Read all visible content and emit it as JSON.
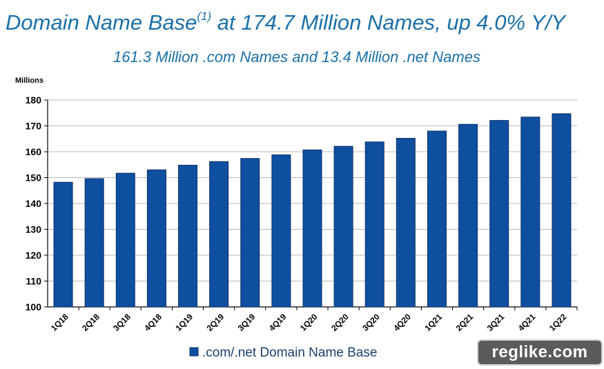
{
  "header": {
    "title_main": "Domain Name Base",
    "title_sup": "(1)",
    "title_rest": " at 174.7 Million Names, up 4.0% Y/Y",
    "subtitle": "161.3 Million .com Names and 13.4 Million .net Names"
  },
  "watermark": {
    "text": "reglike.com"
  },
  "colors": {
    "bar": "#0f4fa0",
    "bar_edge": "#0a2f66",
    "grid": "#b8b8b8",
    "title": "#1a6fa8"
  },
  "chart_data": {
    "type": "bar",
    "ylabel": "Millions",
    "xlabel": "",
    "ylim": [
      100,
      180
    ],
    "yticks": [
      100,
      110,
      120,
      130,
      140,
      150,
      160,
      170,
      180
    ],
    "grid": true,
    "legend_position": "bottom-center",
    "categories": [
      "1Q18",
      "2Q18",
      "3Q18",
      "4Q18",
      "1Q19",
      "2Q19",
      "3Q19",
      "4Q19",
      "1Q20",
      "2Q20",
      "3Q20",
      "4Q20",
      "1Q21",
      "2Q21",
      "3Q21",
      "4Q21",
      "1Q22"
    ],
    "series": [
      {
        "name": ".com/.net Domain Name Base",
        "values": [
          148.2,
          149.6,
          151.7,
          153.0,
          154.8,
          156.2,
          157.4,
          158.8,
          160.7,
          162.1,
          163.8,
          165.2,
          168.0,
          170.6,
          172.1,
          173.4,
          174.7
        ]
      }
    ]
  }
}
